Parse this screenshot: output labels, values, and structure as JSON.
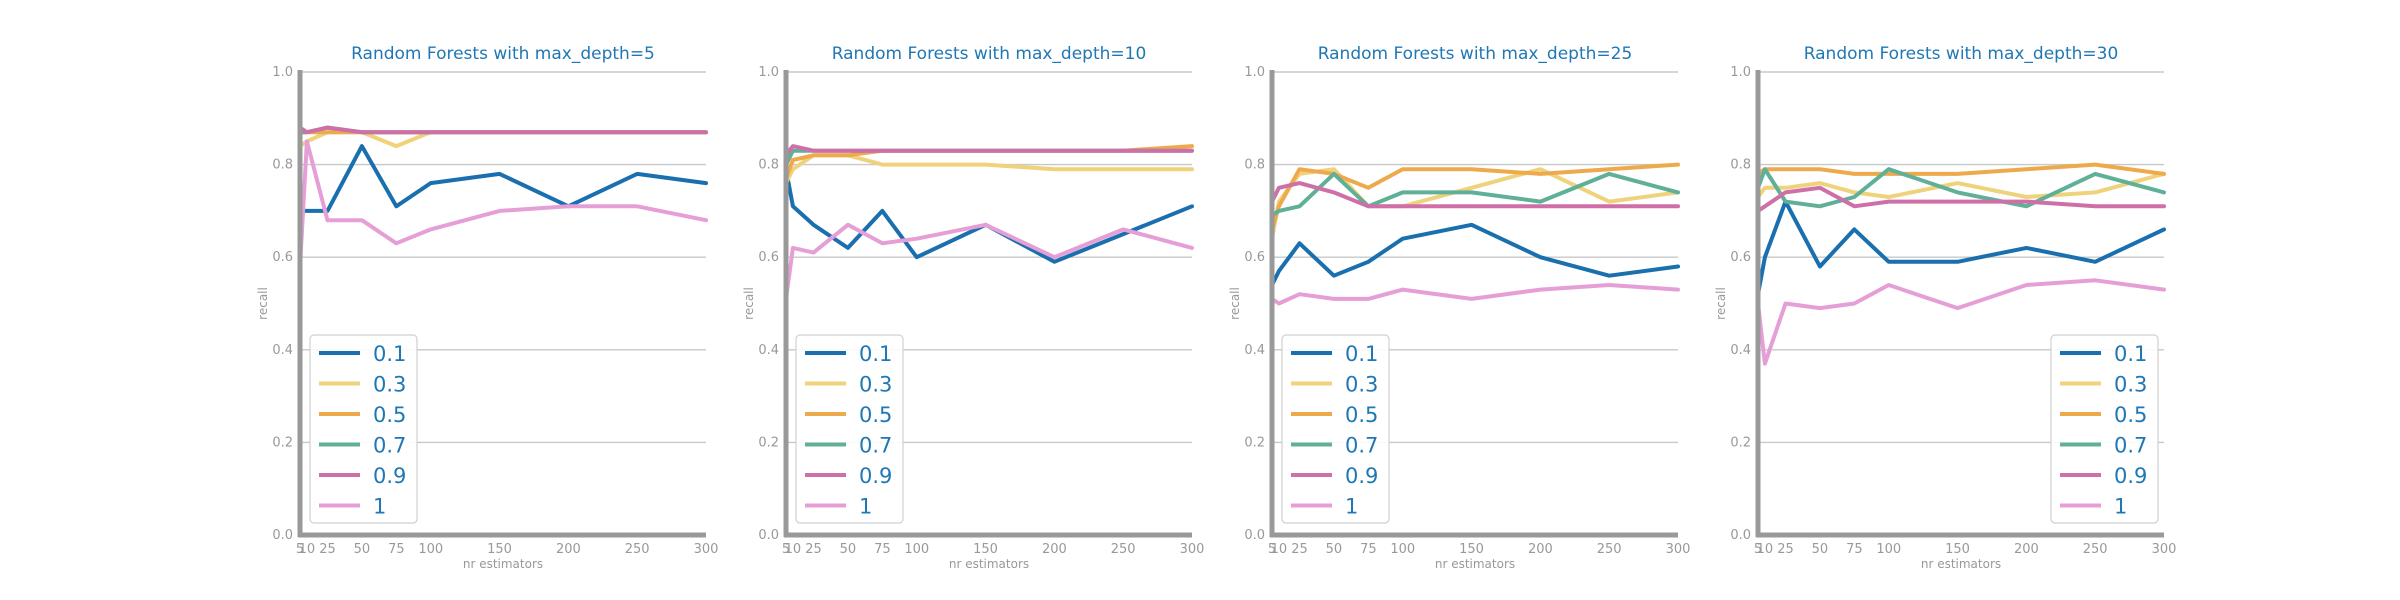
{
  "colors": {
    "0.1": "#1a6fae",
    "0.3": "#efd37c",
    "0.5": "#eea94c",
    "0.7": "#5fb097",
    "0.9": "#cf6fa8",
    "1": "#e59fd6",
    "title": "#1f77b4",
    "axis": "#999999",
    "grid": "#c8c8c8"
  },
  "chart_data": [
    {
      "type": "line",
      "title": "Random Forests with max_depth=5",
      "xlabel": "nr estimators",
      "ylabel": "recall",
      "x": [
        5,
        10,
        25,
        50,
        75,
        100,
        150,
        200,
        250,
        300
      ],
      "xticks": [
        "5",
        "10",
        "25",
        "50",
        "75",
        "100",
        "150",
        "200",
        "250",
        "300"
      ],
      "xlim": [
        5,
        300
      ],
      "ylim": [
        0,
        1
      ],
      "yticks": [
        "0.0",
        "0.2",
        "0.4",
        "0.6",
        "0.8",
        "1.0"
      ],
      "legend_position": "lower-left",
      "series": [
        {
          "name": "0.1",
          "values": [
            0.7,
            0.7,
            0.7,
            0.84,
            0.71,
            0.76,
            0.78,
            0.71,
            0.78,
            0.76
          ]
        },
        {
          "name": "0.3",
          "values": [
            0.84,
            0.85,
            0.87,
            0.87,
            0.84,
            0.87,
            0.87,
            0.87,
            0.87,
            0.87
          ]
        },
        {
          "name": "0.5",
          "values": [
            0.87,
            0.87,
            0.87,
            0.87,
            0.87,
            0.87,
            0.87,
            0.87,
            0.87,
            0.87
          ]
        },
        {
          "name": "0.7",
          "values": [
            0.87,
            0.87,
            0.88,
            0.87,
            0.87,
            0.87,
            0.87,
            0.87,
            0.87,
            0.87
          ]
        },
        {
          "name": "0.9",
          "values": [
            0.88,
            0.87,
            0.88,
            0.87,
            0.87,
            0.87,
            0.87,
            0.87,
            0.87,
            0.87
          ]
        },
        {
          "name": "1",
          "values": [
            0.58,
            0.85,
            0.68,
            0.68,
            0.63,
            0.66,
            0.7,
            0.71,
            0.71,
            0.68
          ]
        }
      ]
    },
    {
      "type": "line",
      "title": "Random Forests with max_depth=10",
      "xlabel": "nr estimators",
      "ylabel": "recall",
      "x": [
        5,
        10,
        25,
        50,
        75,
        100,
        150,
        200,
        250,
        300
      ],
      "xticks": [
        "5",
        "10",
        "25",
        "50",
        "75",
        "100",
        "150",
        "200",
        "250",
        "300"
      ],
      "xlim": [
        5,
        300
      ],
      "ylim": [
        0,
        1
      ],
      "yticks": [
        "0.0",
        "0.2",
        "0.4",
        "0.6",
        "0.8",
        "1.0"
      ],
      "legend_position": "lower-left",
      "series": [
        {
          "name": "0.1",
          "values": [
            0.79,
            0.71,
            0.67,
            0.62,
            0.7,
            0.6,
            0.67,
            0.59,
            0.65,
            0.71
          ]
        },
        {
          "name": "0.3",
          "values": [
            0.76,
            0.79,
            0.82,
            0.82,
            0.8,
            0.8,
            0.8,
            0.79,
            0.79,
            0.79
          ]
        },
        {
          "name": "0.5",
          "values": [
            0.77,
            0.81,
            0.82,
            0.82,
            0.83,
            0.83,
            0.83,
            0.83,
            0.83,
            0.84
          ]
        },
        {
          "name": "0.7",
          "values": [
            0.8,
            0.83,
            0.83,
            0.83,
            0.83,
            0.83,
            0.83,
            0.83,
            0.83,
            0.83
          ]
        },
        {
          "name": "0.9",
          "values": [
            0.82,
            0.84,
            0.83,
            0.83,
            0.83,
            0.83,
            0.83,
            0.83,
            0.83,
            0.83
          ]
        },
        {
          "name": "1",
          "values": [
            0.51,
            0.62,
            0.61,
            0.67,
            0.63,
            0.64,
            0.67,
            0.6,
            0.66,
            0.62
          ]
        }
      ]
    },
    {
      "type": "line",
      "title": "Random Forests with max_depth=25",
      "xlabel": "nr estimators",
      "ylabel": "recall",
      "x": [
        5,
        10,
        25,
        50,
        75,
        100,
        150,
        200,
        250,
        300
      ],
      "xticks": [
        "5",
        "10",
        "25",
        "50",
        "75",
        "100",
        "150",
        "200",
        "250",
        "300"
      ],
      "xlim": [
        5,
        300
      ],
      "ylim": [
        0,
        1
      ],
      "yticks": [
        "0.0",
        "0.2",
        "0.4",
        "0.6",
        "0.8",
        "1.0"
      ],
      "legend_position": "lower-left",
      "series": [
        {
          "name": "0.1",
          "values": [
            0.54,
            0.57,
            0.63,
            0.56,
            0.59,
            0.64,
            0.67,
            0.6,
            0.56,
            0.58
          ]
        },
        {
          "name": "0.3",
          "values": [
            0.64,
            0.72,
            0.78,
            0.79,
            0.71,
            0.71,
            0.75,
            0.79,
            0.72,
            0.74
          ]
        },
        {
          "name": "0.5",
          "values": [
            0.66,
            0.71,
            0.79,
            0.78,
            0.75,
            0.79,
            0.79,
            0.78,
            0.79,
            0.8
          ]
        },
        {
          "name": "0.7",
          "values": [
            0.69,
            0.7,
            0.71,
            0.78,
            0.71,
            0.74,
            0.74,
            0.72,
            0.78,
            0.74
          ]
        },
        {
          "name": "0.9",
          "values": [
            0.72,
            0.75,
            0.76,
            0.74,
            0.71,
            0.71,
            0.71,
            0.71,
            0.71,
            0.71
          ]
        },
        {
          "name": "1",
          "values": [
            0.51,
            0.5,
            0.52,
            0.51,
            0.51,
            0.53,
            0.51,
            0.53,
            0.54,
            0.53
          ]
        }
      ]
    },
    {
      "type": "line",
      "title": "Random Forests with max_depth=30",
      "xlabel": "nr estimators",
      "ylabel": "recall",
      "x": [
        5,
        10,
        25,
        50,
        75,
        100,
        150,
        200,
        250,
        300
      ],
      "xticks": [
        "5",
        "10",
        "25",
        "50",
        "75",
        "100",
        "150",
        "200",
        "250",
        "300"
      ],
      "xlim": [
        5,
        300
      ],
      "ylim": [
        0,
        1
      ],
      "yticks": [
        "0.0",
        "0.2",
        "0.4",
        "0.6",
        "0.8",
        "1.0"
      ],
      "legend_position": "lower-right",
      "series": [
        {
          "name": "0.1",
          "values": [
            0.52,
            0.6,
            0.72,
            0.58,
            0.66,
            0.59,
            0.59,
            0.62,
            0.59,
            0.66
          ]
        },
        {
          "name": "0.3",
          "values": [
            0.73,
            0.75,
            0.75,
            0.76,
            0.74,
            0.73,
            0.76,
            0.73,
            0.74,
            0.78
          ]
        },
        {
          "name": "0.5",
          "values": [
            0.78,
            0.79,
            0.79,
            0.79,
            0.78,
            0.78,
            0.78,
            0.79,
            0.8,
            0.78
          ]
        },
        {
          "name": "0.7",
          "values": [
            0.75,
            0.79,
            0.72,
            0.71,
            0.73,
            0.79,
            0.74,
            0.71,
            0.78,
            0.74
          ]
        },
        {
          "name": "0.9",
          "values": [
            0.7,
            0.71,
            0.74,
            0.75,
            0.71,
            0.72,
            0.72,
            0.72,
            0.71,
            0.71
          ]
        },
        {
          "name": "1",
          "values": [
            0.5,
            0.37,
            0.5,
            0.49,
            0.5,
            0.54,
            0.49,
            0.54,
            0.55,
            0.53
          ]
        }
      ]
    }
  ]
}
